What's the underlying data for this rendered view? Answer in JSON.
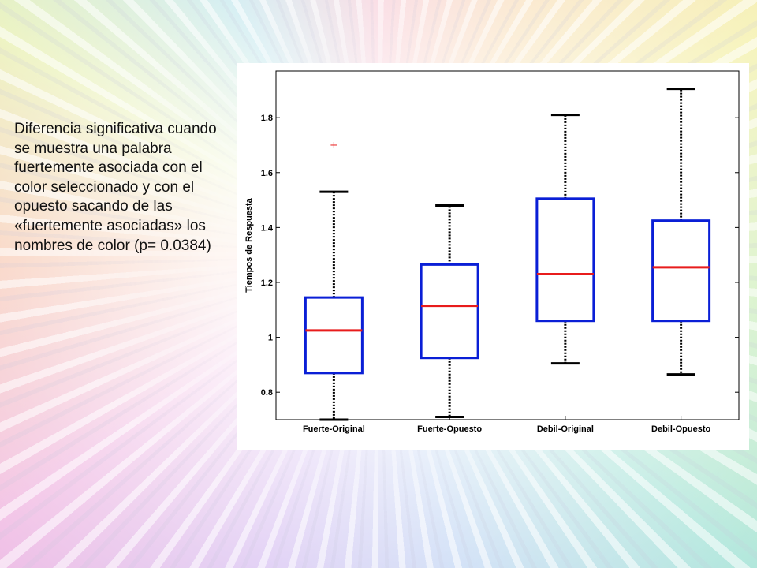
{
  "caption": {
    "text": "Diferencia significativa cuando se muestra una palabra fuertemente asociada con el color seleccionado y con el opuesto sacando de las «fuertemente asociadas» los nombres de color (p= 0.0384)"
  },
  "colors": {
    "box": "#0a1fd6",
    "median": "#e81c1c",
    "whisker": "#000000",
    "outlier": "#e81c1c"
  },
  "chart_data": {
    "type": "box",
    "title": "",
    "xlabel": "",
    "ylabel": "Tiempos de Respuesta",
    "ylim": [
      0.7,
      1.97
    ],
    "yticks": [
      0.8,
      1,
      1.2,
      1.4,
      1.6,
      1.8
    ],
    "ytick_labels": [
      "0.8",
      "1",
      "1.2",
      "1.4",
      "1.6",
      "1.8"
    ],
    "grid": false,
    "categories": [
      "Fuerte-Original",
      "Fuerte-Opuesto",
      "Debil-Original",
      "Debil-Opuesto"
    ],
    "boxes": [
      {
        "category": "Fuerte-Original",
        "whisker_low": 0.7,
        "q1": 0.87,
        "median": 1.025,
        "q3": 1.145,
        "whisker_high": 1.53,
        "outliers": [
          1.7
        ]
      },
      {
        "category": "Fuerte-Opuesto",
        "whisker_low": 0.71,
        "q1": 0.925,
        "median": 1.115,
        "q3": 1.265,
        "whisker_high": 1.48,
        "outliers": []
      },
      {
        "category": "Debil-Original",
        "whisker_low": 0.905,
        "q1": 1.06,
        "median": 1.23,
        "q3": 1.505,
        "whisker_high": 1.81,
        "outliers": []
      },
      {
        "category": "Debil-Opuesto",
        "whisker_low": 0.865,
        "q1": 1.06,
        "median": 1.255,
        "q3": 1.425,
        "whisker_high": 1.905,
        "outliers": []
      }
    ]
  }
}
